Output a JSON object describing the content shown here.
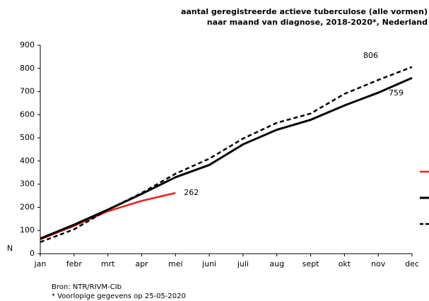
{
  "chart_data": {
    "type": "line",
    "title": [
      "aantal geregistreerde actieve tuberculose (alle vormen)",
      "naar maand van diagnose, 2018-2020*, Nederland"
    ],
    "ylabel": "N",
    "categories": [
      "jan",
      "febr",
      "mrt",
      "apr",
      "mei",
      "juni",
      "juli",
      "aug",
      "sept",
      "okt",
      "nov",
      "dec"
    ],
    "series": [
      {
        "color": "#e8201c",
        "dash": false,
        "width": 2.5,
        "values": [
          62,
          120,
          183,
          228,
          262,
          null,
          null,
          null,
          null,
          null,
          null,
          null
        ]
      },
      {
        "color": "#000000",
        "dash": false,
        "width": 3,
        "values": [
          65,
          125,
          190,
          258,
          330,
          383,
          472,
          535,
          578,
          640,
          695,
          759
        ]
      },
      {
        "color": "#000000",
        "dash": true,
        "width": 2.5,
        "values": [
          50,
          105,
          190,
          262,
          345,
          410,
          497,
          565,
          605,
          690,
          750,
          806
        ]
      }
    ],
    "ylim": [
      0,
      900
    ],
    "yticks": [
      0,
      100,
      200,
      300,
      400,
      500,
      600,
      700,
      800,
      900
    ],
    "notes": [
      "Bron: NTR/RIVM-CIb",
      "* Voorlopige gegevens op 25-05-2020"
    ]
  }
}
